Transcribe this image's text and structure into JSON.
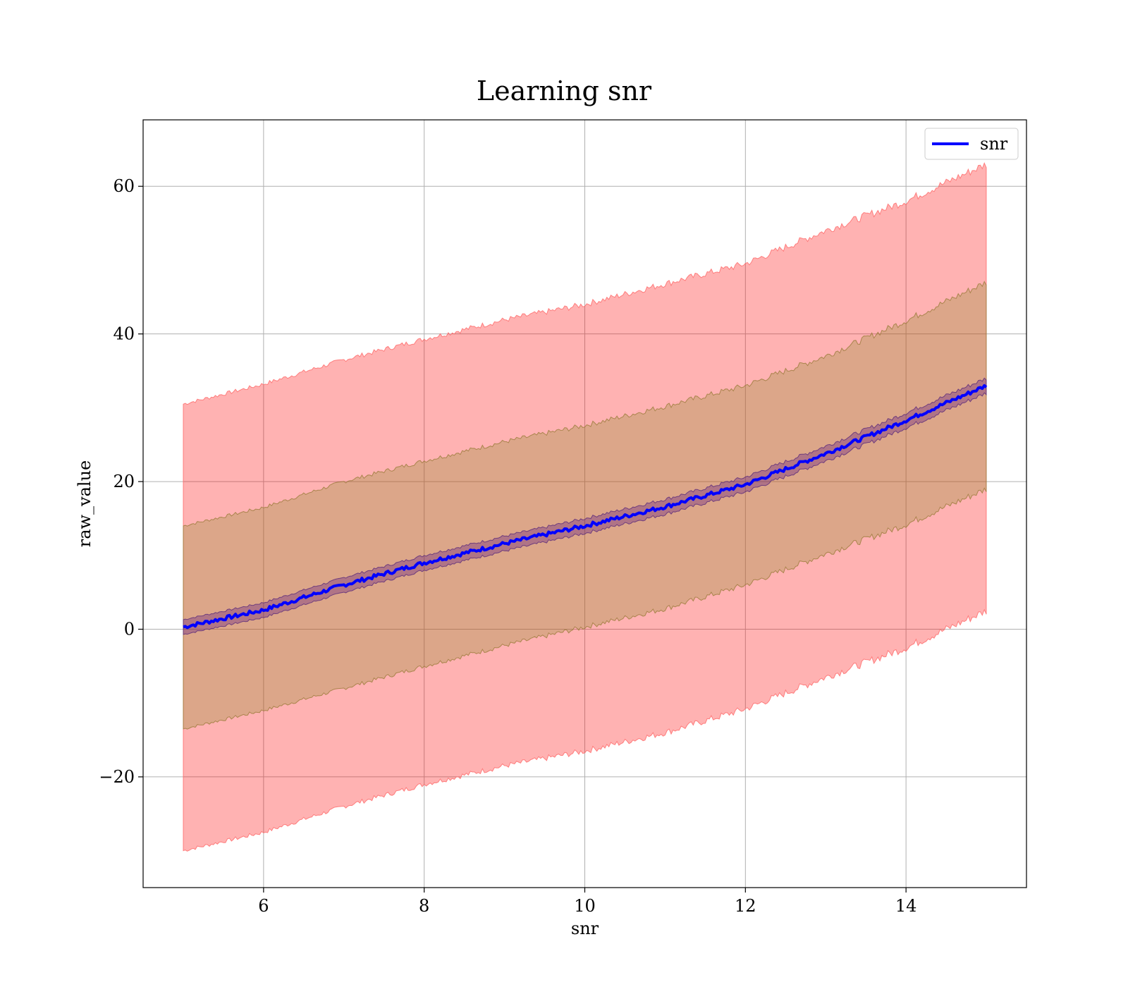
{
  "chart_data": {
    "type": "area",
    "title": "Learning snr",
    "xlabel": "snr",
    "ylabel": "raw_value",
    "xlim": [
      4.5,
      15.5
    ],
    "ylim": [
      -35,
      69
    ],
    "xticks": [
      6,
      8,
      10,
      12,
      14
    ],
    "xtick_labels": [
      "6",
      "8",
      "10",
      "12",
      "14"
    ],
    "yticks": [
      -20,
      0,
      20,
      40,
      60
    ],
    "ytick_labels": [
      "−20",
      "0",
      "20",
      "40",
      "60"
    ],
    "grid": true,
    "legend": {
      "location": "upper right",
      "entries": [
        "snr"
      ]
    },
    "x": [
      5,
      6,
      7,
      8,
      9,
      10,
      11,
      12,
      13,
      14,
      15
    ],
    "series": [
      {
        "name": "snr",
        "kind": "line",
        "color": "#0000ff",
        "values": [
          0.3,
          2.6,
          6.0,
          9.0,
          11.6,
          14.0,
          16.6,
          19.6,
          23.8,
          28.3,
          33.0
        ]
      }
    ],
    "bands": [
      {
        "kind": "std3",
        "fill": "#ff0000",
        "fill_opacity": 0.3,
        "edge": "#ff6666",
        "upper": [
          30.5,
          33.2,
          36.5,
          39.3,
          41.9,
          44.0,
          46.8,
          49.5,
          54.0,
          58.0,
          63.0
        ],
        "lower": [
          -30.0,
          -27.5,
          -24.0,
          -21.0,
          -18.5,
          -16.5,
          -14.0,
          -10.8,
          -6.5,
          -2.5,
          2.5
        ]
      },
      {
        "kind": "std2",
        "fill": "#8b8b2a",
        "fill_opacity": 0.3,
        "edge": "#9a7a3a",
        "upper": [
          14.0,
          16.5,
          20.0,
          22.8,
          25.4,
          27.6,
          30.2,
          33.0,
          37.0,
          41.8,
          47.0
        ],
        "lower": [
          -13.5,
          -11.0,
          -8.0,
          -5.0,
          -2.2,
          0.3,
          2.8,
          6.0,
          10.2,
          14.2,
          19.0
        ]
      },
      {
        "kind": "std1",
        "fill": "#4b0082",
        "fill_opacity": 0.3,
        "edge": "#5a2a7a",
        "upper": [
          1.3,
          3.6,
          7.0,
          10.0,
          12.6,
          15.0,
          17.6,
          20.6,
          24.8,
          29.3,
          34.0
        ],
        "lower": [
          -0.7,
          1.6,
          5.0,
          8.0,
          10.6,
          13.0,
          15.6,
          18.6,
          22.8,
          27.3,
          32.0
        ]
      }
    ]
  }
}
